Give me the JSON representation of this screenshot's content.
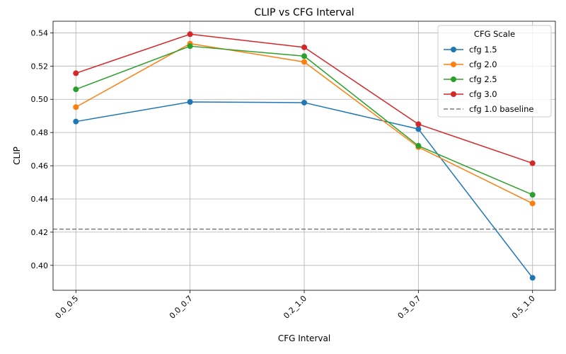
{
  "chart_data": {
    "type": "line",
    "title": "CLIP vs CFG Interval",
    "xlabel": "CFG Interval",
    "ylabel": "CLIP",
    "categories": [
      "0.0_0.5",
      "0.0_0.7",
      "0.2_1.0",
      "0.3_0.7",
      "0.5_1.0"
    ],
    "ylim": [
      0.385,
      0.547
    ],
    "yticks": [
      0.4,
      0.42,
      0.44,
      0.46,
      0.48,
      0.5,
      0.52,
      0.54
    ],
    "ytick_labels": [
      "0.40",
      "0.42",
      "0.44",
      "0.46",
      "0.48",
      "0.50",
      "0.52",
      "0.54"
    ],
    "grid": true,
    "legend": {
      "title": "CFG Scale",
      "placement": "top-right"
    },
    "series": [
      {
        "name": "cfg 1.5",
        "color": "#1f77b4",
        "values": [
          0.4866,
          0.4984,
          0.498,
          0.4821,
          0.3925
        ]
      },
      {
        "name": "cfg 2.0",
        "color": "#ff7f0e",
        "values": [
          0.4953,
          0.5335,
          0.5225,
          0.4712,
          0.4373
        ]
      },
      {
        "name": "cfg 2.5",
        "color": "#2ca02c",
        "values": [
          0.506,
          0.532,
          0.526,
          0.472,
          0.4425
        ]
      },
      {
        "name": "cfg 3.0",
        "color": "#d62728",
        "values": [
          0.5157,
          0.5392,
          0.5313,
          0.485,
          0.4615
        ]
      }
    ],
    "baseline": {
      "name": "cfg 1.0 baseline",
      "value": 0.4218,
      "color": "#808080",
      "style": "dashed"
    }
  }
}
